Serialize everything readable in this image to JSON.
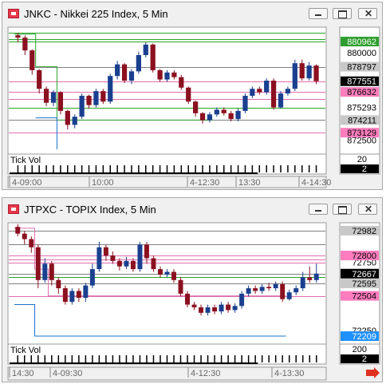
{
  "colors": {
    "up": "#1a3f8f",
    "down": "#8b1020",
    "pink_line": "#e06fb0",
    "green_line": "#2aa52a",
    "gray_line": "#808080",
    "blue_line": "#1874cd",
    "label_green": "#2e9e2e",
    "label_pink": "#ff7dbe",
    "label_gray": "#c8c8c8",
    "label_dark": "#000000",
    "label_blue": "#1e90ff"
  },
  "charts": [
    {
      "id": "nikkei",
      "title": "JNKC - Nikkei 225 Index, 5 Min",
      "y_range": [
        871700,
        882200
      ],
      "price_ticks": [
        "880000",
        "872500"
      ],
      "price_labels": [
        {
          "text": "880962",
          "value": 880962,
          "style": "green"
        },
        {
          "text": "878797",
          "value": 878797,
          "style": "gray"
        },
        {
          "text": "877551",
          "value": 877551,
          "style": "dark"
        },
        {
          "text": "876632",
          "value": 876632,
          "style": "pink"
        },
        {
          "text": "875293",
          "value": 875293,
          "style": "plain"
        },
        {
          "text": "874211",
          "value": 874211,
          "style": "gray"
        },
        {
          "text": "873129",
          "value": 873129,
          "style": "pink"
        }
      ],
      "h_lines": [
        {
          "value": 881700,
          "color": "green"
        },
        {
          "value": 881200,
          "color": "green"
        },
        {
          "value": 880962,
          "color": "green"
        },
        {
          "value": 878797,
          "color": "gray"
        },
        {
          "value": 877551,
          "color": "pink"
        },
        {
          "value": 876632,
          "color": "pink"
        },
        {
          "value": 876050,
          "color": "pink"
        },
        {
          "value": 875293,
          "color": "green"
        },
        {
          "value": 874211,
          "color": "gray"
        },
        {
          "value": 873129,
          "color": "pink"
        }
      ],
      "step_line": {
        "color": "green",
        "points": [
          [
            0,
            881600
          ],
          [
            3,
            881600
          ],
          [
            3,
            878797
          ],
          [
            6,
            878797
          ],
          [
            6,
            874211
          ],
          [
            28,
            874211
          ]
        ]
      },
      "step_line_2": {
        "color": "blue",
        "points": [
          [
            3,
            874400
          ],
          [
            6,
            874400
          ],
          [
            6,
            871700
          ]
        ]
      },
      "candles": [
        [
          881500,
          881300,
          881700,
          880900
        ],
        [
          881300,
          880200,
          881500,
          879800
        ],
        [
          880200,
          878500,
          880300,
          878100
        ],
        [
          878500,
          876900,
          878600,
          876500
        ],
        [
          876900,
          875700,
          877100,
          875400
        ],
        [
          875700,
          876600,
          876800,
          875400
        ],
        [
          876600,
          875000,
          876700,
          874700
        ],
        [
          875000,
          873800,
          875100,
          873400
        ],
        [
          873800,
          874500,
          874700,
          873500
        ],
        [
          874500,
          876300,
          876500,
          874300
        ],
        [
          876300,
          875500,
          876400,
          875200
        ],
        [
          875500,
          876700,
          876900,
          875300
        ],
        [
          876700,
          875800,
          876900,
          875600
        ],
        [
          875800,
          878000,
          878200,
          875600
        ],
        [
          878000,
          879000,
          879300,
          877700
        ],
        [
          879000,
          877600,
          879100,
          877400
        ],
        [
          877600,
          878400,
          878600,
          877300
        ],
        [
          878400,
          879800,
          880100,
          878200
        ],
        [
          879800,
          880700,
          880900,
          879600
        ],
        [
          880700,
          878500,
          880800,
          878300
        ],
        [
          878500,
          877700,
          878600,
          877500
        ],
        [
          877700,
          878300,
          878500,
          877500
        ],
        [
          878300,
          877900,
          878500,
          877700
        ],
        [
          877900,
          877000,
          878100,
          876800
        ],
        [
          877000,
          875800,
          877100,
          875600
        ],
        [
          875800,
          874800,
          875900,
          874500
        ],
        [
          874800,
          874200,
          874900,
          873900
        ],
        [
          874200,
          874700,
          874900,
          874000
        ],
        [
          874700,
          875100,
          875300,
          874500
        ],
        [
          875100,
          874800,
          875300,
          874600
        ],
        [
          874800,
          874300,
          875000,
          874100
        ],
        [
          874300,
          875000,
          875200,
          874100
        ],
        [
          875000,
          876300,
          876500,
          874800
        ],
        [
          876300,
          876900,
          877100,
          876100
        ],
        [
          876900,
          876600,
          877100,
          876400
        ],
        [
          876600,
          877600,
          877800,
          876400
        ],
        [
          877600,
          875300,
          877800,
          875100
        ],
        [
          875300,
          876500,
          876700,
          875200
        ],
        [
          876500,
          876900,
          877100,
          876300
        ],
        [
          876900,
          879100,
          879400,
          876700
        ],
        [
          879100,
          877800,
          879400,
          877600
        ],
        [
          877800,
          878900,
          879200,
          877600
        ],
        [
          878900,
          877551,
          879000,
          877300
        ]
      ],
      "tick_vol_label": "Tick Vol",
      "tick_vol_values": [
        "20",
        "2"
      ],
      "time_labels": [
        "4-09:00",
        "10:00",
        "4-12:30",
        "13:30",
        "4-14:30"
      ]
    },
    {
      "id": "topix",
      "title": "JTPXC - TOPIX Index, 5 Min",
      "y_range": [
        72180,
        73040
      ],
      "price_ticks": [
        "72750",
        "72250"
      ],
      "price_labels": [
        {
          "text": "72982",
          "value": 72982,
          "style": "gray"
        },
        {
          "text": "72800",
          "value": 72800,
          "style": "pink"
        },
        {
          "text": "72667",
          "value": 72667,
          "style": "dark"
        },
        {
          "text": "72595",
          "value": 72595,
          "style": "gray"
        },
        {
          "text": "72504",
          "value": 72504,
          "style": "pink"
        },
        {
          "text": "72209",
          "value": 72209,
          "style": "blue"
        }
      ],
      "h_lines": [
        {
          "value": 72982,
          "color": "gray"
        },
        {
          "value": 72880,
          "color": "gray"
        },
        {
          "value": 72800,
          "color": "pink"
        },
        {
          "value": 72772,
          "color": "pink"
        },
        {
          "value": 72745,
          "color": "pink"
        },
        {
          "value": 72667,
          "color": "gray"
        },
        {
          "value": 72640,
          "color": "green"
        },
        {
          "value": 72595,
          "color": "gray"
        },
        {
          "value": 72504,
          "color": "pink"
        }
      ],
      "step_line": {
        "color": "pink",
        "points": [
          [
            0,
            73000
          ],
          [
            3,
            73000
          ],
          [
            3,
            72700
          ],
          [
            5,
            72700
          ],
          [
            5,
            72504
          ],
          [
            40,
            72504
          ]
        ]
      },
      "step_line_2": {
        "color": "blue",
        "points": [
          [
            0,
            72440
          ],
          [
            3,
            72440
          ],
          [
            3,
            72209
          ],
          [
            40,
            72209
          ]
        ]
      },
      "candles": [
        [
          73010,
          72960,
          73030,
          72940
        ],
        [
          72960,
          72920,
          72980,
          72880
        ],
        [
          72920,
          72860,
          72940,
          72820
        ],
        [
          72860,
          72620,
          72880,
          72560
        ],
        [
          72620,
          72740,
          72780,
          72600
        ],
        [
          72740,
          72620,
          72760,
          72580
        ],
        [
          72620,
          72560,
          72640,
          72520
        ],
        [
          72560,
          72460,
          72580,
          72440
        ],
        [
          72460,
          72540,
          72560,
          72440
        ],
        [
          72540,
          72490,
          72560,
          72460
        ],
        [
          72490,
          72580,
          72600,
          72460
        ],
        [
          72580,
          72700,
          72740,
          72560
        ],
        [
          72700,
          72860,
          72900,
          72680
        ],
        [
          72860,
          72800,
          72880,
          72760
        ],
        [
          72800,
          72760,
          72830,
          72740
        ],
        [
          72760,
          72720,
          72780,
          72690
        ],
        [
          72720,
          72760,
          72790,
          72700
        ],
        [
          72760,
          72700,
          72780,
          72680
        ],
        [
          72700,
          72880,
          72900,
          72680
        ],
        [
          72880,
          72780,
          72900,
          72740
        ],
        [
          72780,
          72700,
          72800,
          72680
        ],
        [
          72700,
          72660,
          72720,
          72640
        ],
        [
          72660,
          72680,
          72700,
          72640
        ],
        [
          72680,
          72620,
          72700,
          72600
        ],
        [
          72620,
          72520,
          72640,
          72500
        ],
        [
          72520,
          72440,
          72540,
          72420
        ],
        [
          72440,
          72420,
          72460,
          72400
        ],
        [
          72420,
          72380,
          72440,
          72360
        ],
        [
          72380,
          72420,
          72440,
          72360
        ],
        [
          72420,
          72390,
          72440,
          72370
        ],
        [
          72390,
          72440,
          72460,
          72370
        ],
        [
          72440,
          72400,
          72460,
          72380
        ],
        [
          72400,
          72430,
          72450,
          72380
        ],
        [
          72430,
          72520,
          72540,
          72410
        ],
        [
          72520,
          72560,
          72580,
          72500
        ],
        [
          72560,
          72540,
          72580,
          72520
        ],
        [
          72540,
          72570,
          72590,
          72520
        ],
        [
          72570,
          72560,
          72600,
          72540
        ],
        [
          72560,
          72590,
          72610,
          72540
        ],
        [
          72590,
          72480,
          72610,
          72460
        ],
        [
          72480,
          72530,
          72550,
          72470
        ],
        [
          72530,
          72560,
          72580,
          72510
        ],
        [
          72560,
          72640,
          72680,
          72540
        ],
        [
          72640,
          72620,
          72720,
          72600
        ],
        [
          72620,
          72667,
          72740,
          72600
        ]
      ],
      "tick_vol_label": "Tick Vol",
      "tick_vol_values": [
        "200",
        "2"
      ],
      "time_labels": [
        "14:30",
        "4-09:30",
        "4-12:30",
        "4-13:30"
      ]
    }
  ]
}
